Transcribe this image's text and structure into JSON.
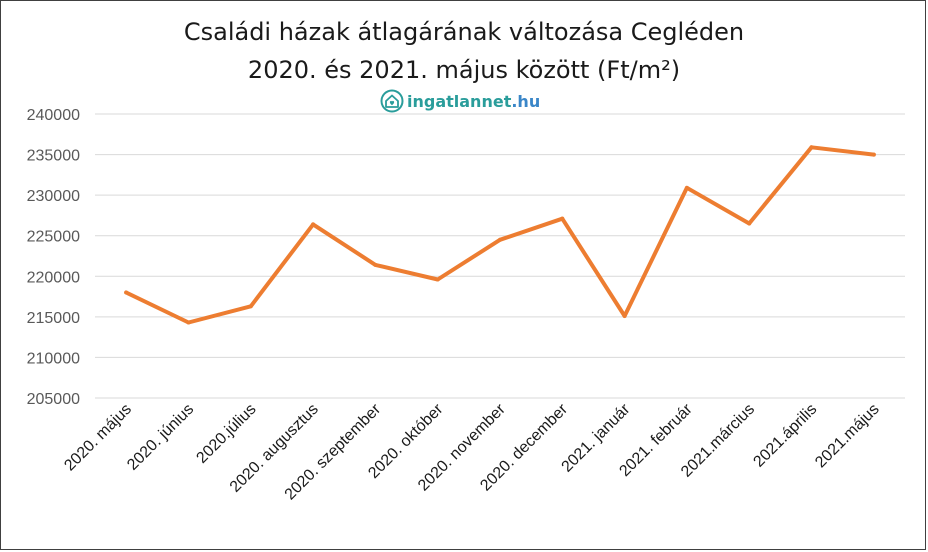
{
  "title_line1": "Családi házak átlagárának változása Cegléden",
  "title_line2": "2020. és 2021. május között (Ft/m²)",
  "brand": {
    "name": "ingatlannet",
    "tld": ".hu",
    "icon": "house-heart-icon",
    "color": "#2a9d9b"
  },
  "chart_data": {
    "type": "line",
    "title": "Családi házak átlagárának változása Cegléden 2020. és 2021. május között (Ft/m²)",
    "categories": [
      "2020. május",
      "2020. június",
      "2020.július",
      "2020. augusztus",
      "2020. szeptember",
      "2020. október",
      "2020. november",
      "2020. december",
      "2021. január",
      "2021. február",
      "2021.március",
      "2021.április",
      "2021.május"
    ],
    "series": [
      {
        "values": [
          218000,
          214300,
          216300,
          226400,
          221400,
          219600,
          224500,
          227100,
          215100,
          230900,
          226500,
          235900,
          235000
        ],
        "color": "#ed7d31"
      }
    ],
    "y_ticks": [
      "205000",
      "210000",
      "215000",
      "220000",
      "225000",
      "230000",
      "235000",
      "240000"
    ],
    "ylim": [
      205000,
      240000
    ],
    "grid": true,
    "legend": "none"
  }
}
